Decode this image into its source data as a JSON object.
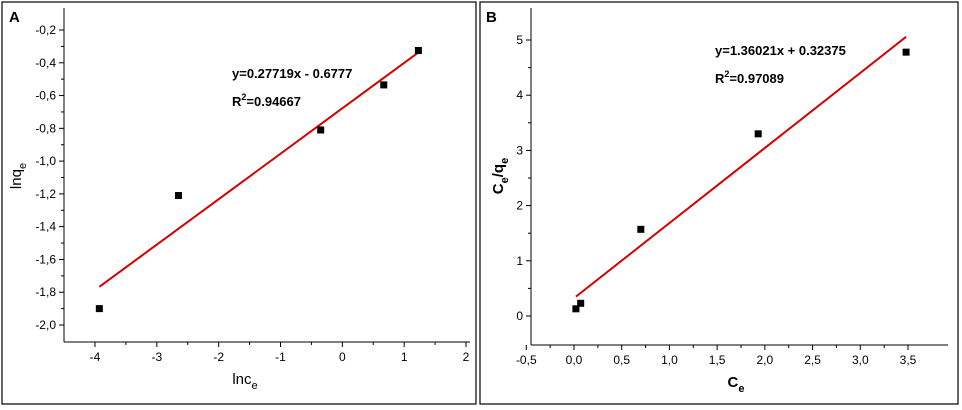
{
  "colors": {
    "fit": "#d40000",
    "point": "#000000"
  },
  "chart_data": [
    {
      "type": "scatter",
      "panel": "A",
      "xlabel": {
        "main": "lnc",
        "sub": "e"
      },
      "ylabel": {
        "main": "lnq",
        "sub": "e"
      },
      "xlim": [
        -4.5,
        2
      ],
      "ylim": [
        -2.1,
        -0.1
      ],
      "xticks": [
        -4,
        -3,
        -2,
        -1,
        0,
        1,
        2
      ],
      "xtick_labels": [
        "-4",
        "-3",
        "-2",
        "-1",
        "0",
        "1",
        "2"
      ],
      "yticks": [
        -2.0,
        -1.8,
        -1.6,
        -1.4,
        -1.2,
        -1.0,
        -0.8,
        -0.6,
        -0.4,
        -0.2
      ],
      "ytick_labels": [
        "-2,0",
        "-1,8",
        "-1,6",
        "-1,4",
        "-1,2",
        "-1,0",
        "-0,8",
        "-0,6",
        "-0,4",
        "-0,2"
      ],
      "points": [
        {
          "x": -3.93,
          "y": -1.9
        },
        {
          "x": -2.65,
          "y": -1.21
        },
        {
          "x": -0.35,
          "y": -0.81
        },
        {
          "x": 0.67,
          "y": -0.535
        },
        {
          "x": 1.23,
          "y": -0.325
        }
      ],
      "fit": {
        "slope": 0.27719,
        "intercept": -0.6777,
        "x_range": [
          -3.93,
          1.23
        ]
      },
      "equation": "y=0.27719x - 0.6777",
      "r2": {
        "main": "R",
        "sup": "2",
        "rest": "=0.94667"
      },
      "grid": false,
      "legend": "none"
    },
    {
      "type": "scatter",
      "panel": "B",
      "xlabel": {
        "main": "C",
        "sub": "e"
      },
      "ylabel": {
        "main": "C",
        "sub1": "e",
        "mid": "/q",
        "sub2": "e"
      },
      "xlim": [
        -0.5,
        3.7
      ],
      "ylim": [
        -0.5,
        5.3
      ],
      "xticks": [
        -0.5,
        0.0,
        0.5,
        1.0,
        1.5,
        2.0,
        2.5,
        3.0,
        3.5
      ],
      "xtick_labels": [
        "-0,5",
        "0,0",
        "0,5",
        "1,0",
        "1,5",
        "2,0",
        "2,5",
        "3,0",
        "3,5"
      ],
      "yticks": [
        0,
        1,
        2,
        3,
        4,
        5
      ],
      "ytick_labels": [
        "0",
        "1",
        "2",
        "3",
        "4",
        "5"
      ],
      "points": [
        {
          "x": 0.02,
          "y": 0.13
        },
        {
          "x": 0.07,
          "y": 0.23
        },
        {
          "x": 0.7,
          "y": 1.57
        },
        {
          "x": 1.93,
          "y": 3.3
        },
        {
          "x": 3.48,
          "y": 4.78
        }
      ],
      "fit": {
        "slope": 1.36021,
        "intercept": 0.32375,
        "x_range": [
          0.02,
          3.48
        ]
      },
      "equation": "y=1.36021x + 0.32375",
      "r2": {
        "main": "R",
        "sup": "2",
        "rest": "=0.97089"
      },
      "grid": false,
      "legend": "none"
    }
  ]
}
